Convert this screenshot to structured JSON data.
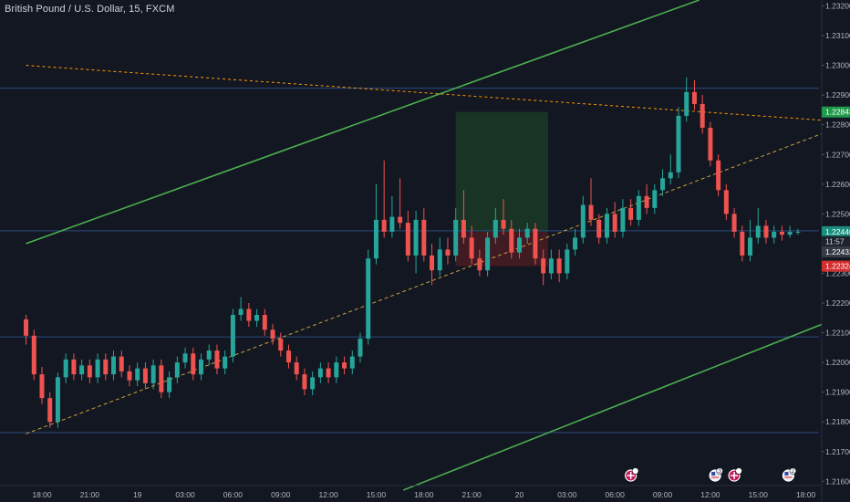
{
  "header": {
    "symbol_title": "British Pound / U.S. Dollar, 15, FXCM"
  },
  "colors": {
    "background": "#131722",
    "up": "#26a69a",
    "down": "#ef5350",
    "channel": "#4caf50",
    "horizontal_line": "#2a4a7f",
    "dotted_level": "#ff9800",
    "dashed_trend": "#c8a23a",
    "target_zone": "#1b3a25",
    "stop_zone": "#4a1c22"
  },
  "chart_data": {
    "type": "candlestick",
    "y_ticks": [
      "1.23200",
      "1.23100",
      "1.23000",
      "1.22900",
      "1.22800",
      "1.22700",
      "1.22600",
      "1.22500",
      "1.22400",
      "1.22300",
      "1.22200",
      "1.22100",
      "1.22000",
      "1.21900",
      "1.21800",
      "1.21700",
      "1.21600"
    ],
    "y_tick_values": [
      1.232,
      1.231,
      1.23,
      1.229,
      1.228,
      1.227,
      1.226,
      1.225,
      1.224,
      1.223,
      1.222,
      1.221,
      1.22,
      1.219,
      1.218,
      1.217,
      1.216
    ],
    "ylim": [
      1.2157,
      1.2322
    ],
    "x_ticks": [
      "18:00",
      "21:00",
      "19",
      "03:00",
      "06:00",
      "09:00",
      "12:00",
      "15:00",
      "18:00",
      "21:00",
      "20",
      "03:00",
      "06:00",
      "09:00",
      "12:00",
      "15:00",
      "18:00"
    ],
    "x_tick_hours": [
      0,
      3,
      6,
      9,
      12,
      15,
      18,
      21,
      24,
      27,
      30,
      33,
      36,
      39,
      42,
      45,
      48
    ],
    "price_tags": [
      {
        "label": "1.22843",
        "value": 1.22843,
        "kind": "target"
      },
      {
        "label": "1.22440",
        "value": 1.2244,
        "kind": "current"
      },
      {
        "label": "11:57",
        "value": 1.22407,
        "kind": "countdown"
      },
      {
        "label": "1.22432",
        "value": 1.22372,
        "kind": "bid"
      },
      {
        "label": "1.22324",
        "value": 1.22324,
        "kind": "stop"
      }
    ],
    "horizontal_levels": [
      1.22923,
      1.22443,
      1.22086,
      1.21764
    ],
    "resistance_dotted": [
      [
        -1.0,
        1.23
      ],
      [
        50.5,
        1.2281
      ]
    ],
    "dashed_trend": [
      [
        -1.0,
        1.2176
      ],
      [
        50.5,
        1.228
      ]
    ],
    "channel_upper": [
      [
        -1.0,
        1.224
      ],
      [
        41.3,
        1.2322
      ]
    ],
    "channel_lower": [
      [
        22.7,
        1.2157
      ],
      [
        50.5,
        1.2216
      ]
    ],
    "position_box": {
      "x_start": 26.0,
      "x_end": 31.8,
      "entry": 1.2244,
      "target": 1.22843,
      "stop": 1.22324
    },
    "candles": [
      [
        1.22145,
        1.2209,
        1.2216,
        1.2206
      ],
      [
        1.2209,
        1.2196,
        1.2211,
        1.2194
      ],
      [
        1.2196,
        1.2188,
        1.21985,
        1.2186
      ],
      [
        1.2188,
        1.218,
        1.219,
        1.2178
      ],
      [
        1.218,
        1.2195,
        1.21965,
        1.2178
      ],
      [
        1.2195,
        1.2201,
        1.2203,
        1.2193
      ],
      [
        1.2201,
        1.2196,
        1.2203,
        1.2194
      ],
      [
        1.2196,
        1.2199,
        1.2201,
        1.2194
      ],
      [
        1.2199,
        1.2195,
        1.2201,
        1.2193
      ],
      [
        1.2195,
        1.2201,
        1.2203,
        1.2193
      ],
      [
        1.2201,
        1.2196,
        1.2203,
        1.2194
      ],
      [
        1.2196,
        1.2202,
        1.2204,
        1.2194
      ],
      [
        1.2202,
        1.2197,
        1.2204,
        1.2195
      ],
      [
        1.2197,
        1.2194,
        1.2199,
        1.2192
      ],
      [
        1.2194,
        1.2198,
        1.22,
        1.2192
      ],
      [
        1.2198,
        1.2193,
        1.22,
        1.2191
      ],
      [
        1.2193,
        1.2199,
        1.2201,
        1.2191
      ],
      [
        1.2199,
        1.219,
        1.2201,
        1.2188
      ],
      [
        1.219,
        1.2195,
        1.2197,
        1.2188
      ],
      [
        1.2195,
        1.22,
        1.2202,
        1.2193
      ],
      [
        1.22,
        1.2203,
        1.2205,
        1.2198
      ],
      [
        1.2203,
        1.2196,
        1.2205,
        1.2194
      ],
      [
        1.2196,
        1.2201,
        1.2203,
        1.2194
      ],
      [
        1.2201,
        1.2204,
        1.2206,
        1.2199
      ],
      [
        1.2204,
        1.2198,
        1.2206,
        1.2196
      ],
      [
        1.2198,
        1.2202,
        1.2204,
        1.2196
      ],
      [
        1.2202,
        1.2216,
        1.2218,
        1.22
      ],
      [
        1.2216,
        1.2218,
        1.2222,
        1.2214
      ],
      [
        1.2218,
        1.2214,
        1.222,
        1.2212
      ],
      [
        1.2214,
        1.2216,
        1.2218,
        1.2212
      ],
      [
        1.2216,
        1.2211,
        1.2218,
        1.2209
      ],
      [
        1.2211,
        1.2208,
        1.2213,
        1.2206
      ],
      [
        1.2208,
        1.2204,
        1.221,
        1.2202
      ],
      [
        1.2204,
        1.22,
        1.2206,
        1.2198
      ],
      [
        1.22,
        1.2196,
        1.2202,
        1.2194
      ],
      [
        1.2196,
        1.2191,
        1.2198,
        1.2189
      ],
      [
        1.2191,
        1.2195,
        1.2197,
        1.2189
      ],
      [
        1.2195,
        1.2198,
        1.22,
        1.2193
      ],
      [
        1.2198,
        1.2195,
        1.22,
        1.2193
      ],
      [
        1.2195,
        1.22,
        1.2202,
        1.2193
      ],
      [
        1.22,
        1.2198,
        1.2202,
        1.2196
      ],
      [
        1.2198,
        1.2202,
        1.2204,
        1.2196
      ],
      [
        1.2202,
        1.2208,
        1.221,
        1.22
      ],
      [
        1.2208,
        1.2235,
        1.2238,
        1.2206
      ],
      [
        1.2235,
        1.2248,
        1.226,
        1.2233
      ],
      [
        1.2248,
        1.2244,
        1.2268,
        1.2242
      ],
      [
        1.2244,
        1.2249,
        1.2256,
        1.2242
      ],
      [
        1.2249,
        1.2247,
        1.2262,
        1.2245
      ],
      [
        1.2247,
        1.2236,
        1.2251,
        1.2234
      ],
      [
        1.2236,
        1.2248,
        1.2251,
        1.223
      ],
      [
        1.2248,
        1.2236,
        1.2252,
        1.2234
      ],
      [
        1.2236,
        1.2231,
        1.224,
        1.2226
      ],
      [
        1.2231,
        1.2238,
        1.2242,
        1.2229
      ],
      [
        1.2238,
        1.2236,
        1.2242,
        1.2233
      ],
      [
        1.2236,
        1.2248,
        1.2252,
        1.2234
      ],
      [
        1.2248,
        1.2242,
        1.2258,
        1.224
      ],
      [
        1.2242,
        1.2235,
        1.2246,
        1.2233
      ],
      [
        1.2235,
        1.2231,
        1.2238,
        1.2229
      ],
      [
        1.2231,
        1.2242,
        1.2244,
        1.2229
      ],
      [
        1.2242,
        1.2248,
        1.2252,
        1.224
      ],
      [
        1.2248,
        1.2245,
        1.2255,
        1.2243
      ],
      [
        1.2245,
        1.2237,
        1.2248,
        1.2235
      ],
      [
        1.2237,
        1.2242,
        1.2245,
        1.2235
      ],
      [
        1.2242,
        1.2245,
        1.2247,
        1.224
      ],
      [
        1.2245,
        1.2235,
        1.2247,
        1.2233
      ],
      [
        1.2235,
        1.223,
        1.2238,
        1.2226
      ],
      [
        1.223,
        1.2235,
        1.2238,
        1.2228
      ],
      [
        1.2235,
        1.223,
        1.2238,
        1.2227
      ],
      [
        1.223,
        1.2238,
        1.224,
        1.2228
      ],
      [
        1.2238,
        1.2242,
        1.2245,
        1.2236
      ],
      [
        1.2242,
        1.2253,
        1.2256,
        1.224
      ],
      [
        1.2253,
        1.2248,
        1.2262,
        1.2246
      ],
      [
        1.2248,
        1.2242,
        1.225,
        1.224
      ],
      [
        1.2242,
        1.225,
        1.2252,
        1.224
      ],
      [
        1.225,
        1.2244,
        1.2254,
        1.2242
      ],
      [
        1.2244,
        1.2252,
        1.2255,
        1.2242
      ],
      [
        1.2252,
        1.2248,
        1.2255,
        1.2246
      ],
      [
        1.2248,
        1.2256,
        1.2258,
        1.2246
      ],
      [
        1.2256,
        1.2252,
        1.226,
        1.225
      ],
      [
        1.2252,
        1.2258,
        1.226,
        1.225
      ],
      [
        1.2258,
        1.2262,
        1.2265,
        1.2256
      ],
      [
        1.2262,
        1.2264,
        1.227,
        1.226
      ],
      [
        1.2264,
        1.2283,
        1.2286,
        1.2262
      ],
      [
        1.2283,
        1.2291,
        1.2296,
        1.2281
      ],
      [
        1.2291,
        1.2287,
        1.2295,
        1.2285
      ],
      [
        1.2287,
        1.2279,
        1.229,
        1.2277
      ],
      [
        1.2279,
        1.2268,
        1.2281,
        1.2266
      ],
      [
        1.2268,
        1.2258,
        1.227,
        1.2256
      ],
      [
        1.2258,
        1.225,
        1.226,
        1.2248
      ],
      [
        1.225,
        1.2244,
        1.2252,
        1.2242
      ],
      [
        1.2244,
        1.2236,
        1.2246,
        1.2234
      ],
      [
        1.2236,
        1.2242,
        1.2248,
        1.2234
      ],
      [
        1.2242,
        1.2246,
        1.2252,
        1.224
      ],
      [
        1.2246,
        1.2242,
        1.2248,
        1.224
      ],
      [
        1.2242,
        1.2244,
        1.2246,
        1.224
      ],
      [
        1.2244,
        1.2243,
        1.2246,
        1.2241
      ],
      [
        1.2243,
        1.2244,
        1.2246,
        1.2242
      ],
      [
        1.2244,
        1.2244,
        1.2245,
        1.2243
      ]
    ]
  },
  "events": [
    {
      "name": "gb-flag",
      "badge": "",
      "hour": 37.0
    },
    {
      "name": "us-flag",
      "badge": "3",
      "hour": 42.3
    },
    {
      "name": "gb-flag",
      "badge": "",
      "hour": 43.5
    },
    {
      "name": "us-flag",
      "badge": "2",
      "hour": 46.9
    }
  ]
}
